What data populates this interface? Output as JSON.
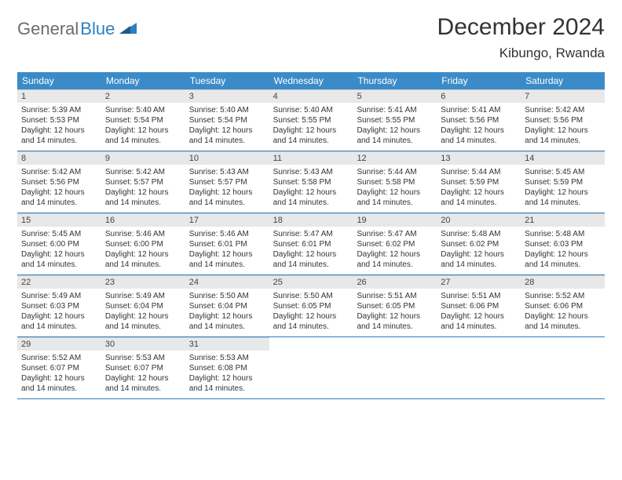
{
  "logo": {
    "text1": "General",
    "text2": "Blue"
  },
  "header": {
    "month_title": "December 2024",
    "location": "Kibungo, Rwanda"
  },
  "colors": {
    "header_bg": "#3b8bc9",
    "header_text": "#ffffff",
    "daynum_bg": "#e8e8e8",
    "row_border": "#2b7fc3",
    "logo_gray": "#6c6c6c",
    "logo_blue": "#2b7fc3"
  },
  "day_names": [
    "Sunday",
    "Monday",
    "Tuesday",
    "Wednesday",
    "Thursday",
    "Friday",
    "Saturday"
  ],
  "days": [
    {
      "n": "1",
      "sr": "5:39 AM",
      "ss": "5:53 PM",
      "dl": "12 hours and 14 minutes."
    },
    {
      "n": "2",
      "sr": "5:40 AM",
      "ss": "5:54 PM",
      "dl": "12 hours and 14 minutes."
    },
    {
      "n": "3",
      "sr": "5:40 AM",
      "ss": "5:54 PM",
      "dl": "12 hours and 14 minutes."
    },
    {
      "n": "4",
      "sr": "5:40 AM",
      "ss": "5:55 PM",
      "dl": "12 hours and 14 minutes."
    },
    {
      "n": "5",
      "sr": "5:41 AM",
      "ss": "5:55 PM",
      "dl": "12 hours and 14 minutes."
    },
    {
      "n": "6",
      "sr": "5:41 AM",
      "ss": "5:56 PM",
      "dl": "12 hours and 14 minutes."
    },
    {
      "n": "7",
      "sr": "5:42 AM",
      "ss": "5:56 PM",
      "dl": "12 hours and 14 minutes."
    },
    {
      "n": "8",
      "sr": "5:42 AM",
      "ss": "5:56 PM",
      "dl": "12 hours and 14 minutes."
    },
    {
      "n": "9",
      "sr": "5:42 AM",
      "ss": "5:57 PM",
      "dl": "12 hours and 14 minutes."
    },
    {
      "n": "10",
      "sr": "5:43 AM",
      "ss": "5:57 PM",
      "dl": "12 hours and 14 minutes."
    },
    {
      "n": "11",
      "sr": "5:43 AM",
      "ss": "5:58 PM",
      "dl": "12 hours and 14 minutes."
    },
    {
      "n": "12",
      "sr": "5:44 AM",
      "ss": "5:58 PM",
      "dl": "12 hours and 14 minutes."
    },
    {
      "n": "13",
      "sr": "5:44 AM",
      "ss": "5:59 PM",
      "dl": "12 hours and 14 minutes."
    },
    {
      "n": "14",
      "sr": "5:45 AM",
      "ss": "5:59 PM",
      "dl": "12 hours and 14 minutes."
    },
    {
      "n": "15",
      "sr": "5:45 AM",
      "ss": "6:00 PM",
      "dl": "12 hours and 14 minutes."
    },
    {
      "n": "16",
      "sr": "5:46 AM",
      "ss": "6:00 PM",
      "dl": "12 hours and 14 minutes."
    },
    {
      "n": "17",
      "sr": "5:46 AM",
      "ss": "6:01 PM",
      "dl": "12 hours and 14 minutes."
    },
    {
      "n": "18",
      "sr": "5:47 AM",
      "ss": "6:01 PM",
      "dl": "12 hours and 14 minutes."
    },
    {
      "n": "19",
      "sr": "5:47 AM",
      "ss": "6:02 PM",
      "dl": "12 hours and 14 minutes."
    },
    {
      "n": "20",
      "sr": "5:48 AM",
      "ss": "6:02 PM",
      "dl": "12 hours and 14 minutes."
    },
    {
      "n": "21",
      "sr": "5:48 AM",
      "ss": "6:03 PM",
      "dl": "12 hours and 14 minutes."
    },
    {
      "n": "22",
      "sr": "5:49 AM",
      "ss": "6:03 PM",
      "dl": "12 hours and 14 minutes."
    },
    {
      "n": "23",
      "sr": "5:49 AM",
      "ss": "6:04 PM",
      "dl": "12 hours and 14 minutes."
    },
    {
      "n": "24",
      "sr": "5:50 AM",
      "ss": "6:04 PM",
      "dl": "12 hours and 14 minutes."
    },
    {
      "n": "25",
      "sr": "5:50 AM",
      "ss": "6:05 PM",
      "dl": "12 hours and 14 minutes."
    },
    {
      "n": "26",
      "sr": "5:51 AM",
      "ss": "6:05 PM",
      "dl": "12 hours and 14 minutes."
    },
    {
      "n": "27",
      "sr": "5:51 AM",
      "ss": "6:06 PM",
      "dl": "12 hours and 14 minutes."
    },
    {
      "n": "28",
      "sr": "5:52 AM",
      "ss": "6:06 PM",
      "dl": "12 hours and 14 minutes."
    },
    {
      "n": "29",
      "sr": "5:52 AM",
      "ss": "6:07 PM",
      "dl": "12 hours and 14 minutes."
    },
    {
      "n": "30",
      "sr": "5:53 AM",
      "ss": "6:07 PM",
      "dl": "12 hours and 14 minutes."
    },
    {
      "n": "31",
      "sr": "5:53 AM",
      "ss": "6:08 PM",
      "dl": "12 hours and 14 minutes."
    }
  ],
  "labels": {
    "sunrise": "Sunrise: ",
    "sunset": "Sunset: ",
    "daylight": "Daylight: "
  },
  "layout": {
    "start_offset": 0,
    "total_cells": 35
  }
}
